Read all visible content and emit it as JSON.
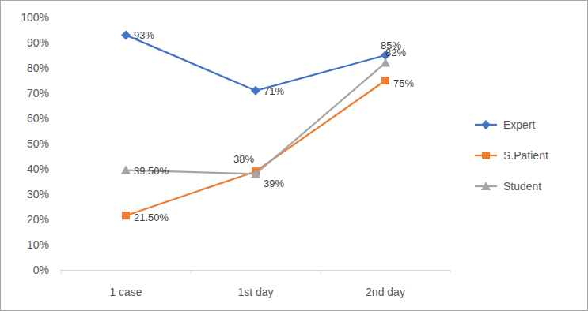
{
  "chart_data": {
    "type": "line",
    "categories": [
      "1 case",
      "1st day",
      "2nd day"
    ],
    "series": [
      {
        "name": "Expert",
        "color": "#4472c4",
        "marker": "diamond",
        "values": [
          93,
          71,
          85
        ],
        "value_labels": [
          "93%",
          "71%",
          "85%"
        ]
      },
      {
        "name": "S.Patient",
        "color": "#ed7d31",
        "marker": "square",
        "values": [
          21.5,
          39,
          75
        ],
        "value_labels": [
          "21.50%",
          "39%",
          "75%"
        ]
      },
      {
        "name": "Student",
        "color": "#a5a5a5",
        "marker": "triangle",
        "values": [
          39.5,
          38,
          82
        ],
        "value_labels": [
          "39.50%",
          "38%",
          "82%"
        ]
      }
    ],
    "ylim": [
      0,
      100
    ],
    "yticks": [
      {
        "value": 0,
        "label": "0%"
      },
      {
        "value": 10,
        "label": "10%"
      },
      {
        "value": 20,
        "label": "20%"
      },
      {
        "value": 30,
        "label": "30%"
      },
      {
        "value": 40,
        "label": "40%"
      },
      {
        "value": 50,
        "label": "50%"
      },
      {
        "value": 60,
        "label": "60%"
      },
      {
        "value": 70,
        "label": "70%"
      },
      {
        "value": 80,
        "label": "80%"
      },
      {
        "value": 90,
        "label": "90%"
      },
      {
        "value": 100,
        "label": "100%"
      }
    ],
    "grid": false,
    "data_labels": true,
    "legend": "right"
  }
}
